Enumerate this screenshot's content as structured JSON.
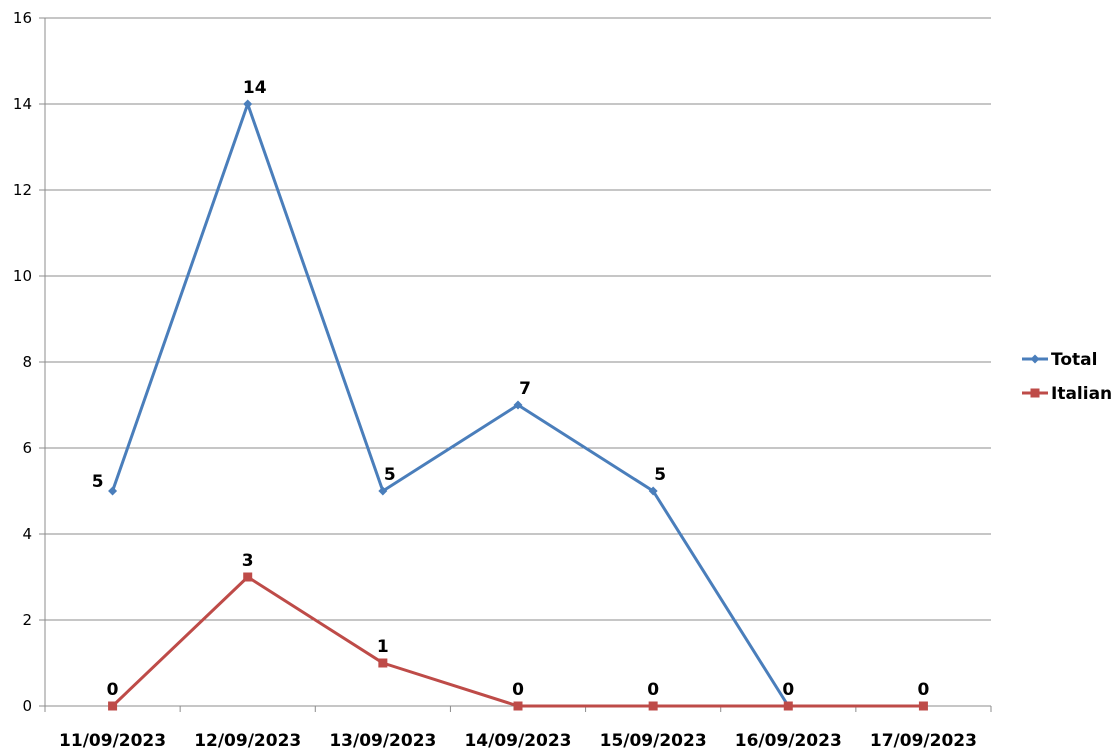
{
  "chart_data": {
    "type": "line",
    "title": "",
    "xlabel": "",
    "ylabel": "",
    "categories": [
      "11/09/2023",
      "12/09/2023",
      "13/09/2023",
      "14/09/2023",
      "15/09/2023",
      "16/09/2023",
      "17/09/2023"
    ],
    "ylim": [
      0,
      16
    ],
    "yticks": [
      0,
      2,
      4,
      6,
      8,
      10,
      12,
      14,
      16
    ],
    "grid": true,
    "legend_position": "right",
    "series": [
      {
        "name": "Total",
        "color": "#4a7ebb",
        "marker": "diamond",
        "values": [
          5,
          14,
          5,
          7,
          5,
          0,
          null
        ],
        "labels": [
          "5",
          "14",
          "5",
          "7",
          "5",
          "",
          ""
        ]
      },
      {
        "name": "Italian",
        "color": "#be4b48",
        "marker": "square",
        "values": [
          0,
          3,
          1,
          0,
          0,
          0,
          0
        ],
        "labels": [
          "0",
          "3",
          "1",
          "0",
          "0",
          "0",
          "0"
        ]
      }
    ]
  }
}
